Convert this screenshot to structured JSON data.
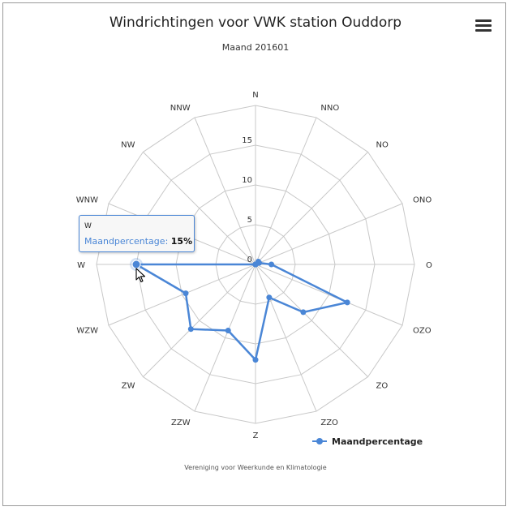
{
  "title": "Windrichtingen voor VWK station Ouddorp",
  "subtitle": "Maand 201601",
  "credits": "Vereniging voor Weerkunde en Klimatologie",
  "menu_icon": "hamburger-menu-icon",
  "cursor_icon": "mouse-pointer-icon",
  "colors": {
    "series": "#4a86d6",
    "grid": "#c8c8c8",
    "axis_label": "#333333"
  },
  "tooltip": {
    "category": "W",
    "series": "Maandpercentage",
    "value": "15%"
  },
  "legend": {
    "label": "Maandpercentage"
  },
  "chart_data": {
    "type": "line",
    "polar": true,
    "title": "Windrichtingen voor VWK station Ouddorp",
    "subtitle": "Maand 201601",
    "categories": [
      "N",
      "NNO",
      "NO",
      "ONO",
      "O",
      "OZO",
      "ZO",
      "ZZO",
      "Z",
      "ZZW",
      "ZW",
      "WZW",
      "W",
      "WNW",
      "NW",
      "NNW"
    ],
    "series": [
      {
        "name": "Maandpercentage",
        "values": [
          0,
          0,
          0.5,
          0.5,
          2,
          12.5,
          8.5,
          4.5,
          12,
          9,
          11.5,
          9.5,
          15,
          0,
          0,
          0
        ]
      }
    ],
    "ylim": [
      0,
      20
    ],
    "ytick_labels": [
      "0",
      "5",
      "10",
      "15"
    ],
    "grid": true,
    "legend_position": "bottom-right"
  }
}
